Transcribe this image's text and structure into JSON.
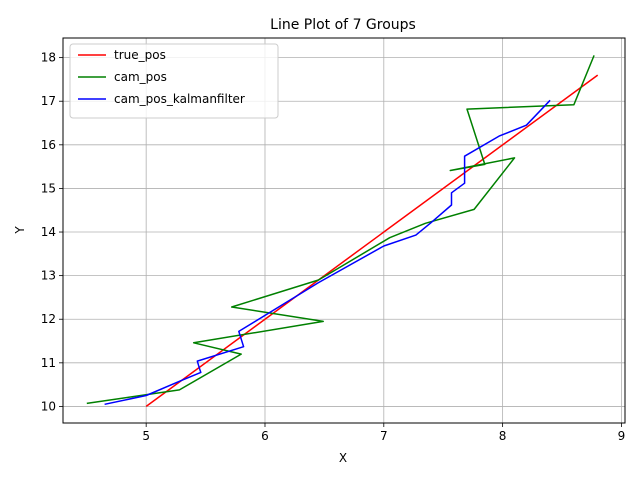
{
  "chart_data": {
    "type": "line",
    "title": "Line Plot of 7 Groups",
    "xlabel": "X",
    "ylabel": "Y",
    "xlim": [
      4.3,
      9.03
    ],
    "ylim": [
      9.62,
      18.45
    ],
    "xticks": [
      5,
      6,
      7,
      8,
      9
    ],
    "yticks": [
      10,
      11,
      12,
      13,
      14,
      15,
      16,
      17,
      18
    ],
    "grid": true,
    "legend": "top-left",
    "series": [
      {
        "name": "true_pos",
        "color": "#ff0000",
        "x": [
          5.0,
          8.8
        ],
        "y": [
          10.0,
          17.6
        ]
      },
      {
        "name": "cam_pos",
        "color": "#008000",
        "x": [
          4.5,
          5.28,
          5.8,
          5.4,
          6.49,
          5.72,
          6.45,
          7.05,
          7.35,
          7.76,
          8.1,
          7.56,
          7.85,
          7.7,
          8.6,
          8.77
        ],
        "y": [
          10.07,
          10.38,
          11.2,
          11.46,
          11.95,
          12.28,
          12.9,
          13.87,
          14.2,
          14.52,
          15.7,
          15.41,
          15.55,
          16.82,
          16.92,
          18.05
        ]
      },
      {
        "name": "cam_pos_kalmanfilter",
        "color": "#0000ff",
        "x": [
          4.65,
          5.0,
          5.3,
          5.46,
          5.45,
          5.43,
          5.82,
          5.78,
          6.45,
          7.0,
          7.27,
          7.4,
          7.57,
          7.57,
          7.68,
          7.68,
          7.97,
          8.2,
          8.4
        ],
        "y": [
          10.05,
          10.25,
          10.6,
          10.78,
          10.86,
          11.04,
          11.37,
          11.72,
          12.84,
          13.68,
          13.93,
          14.22,
          14.62,
          14.9,
          15.12,
          15.74,
          16.2,
          16.45,
          17.02
        ]
      }
    ]
  }
}
